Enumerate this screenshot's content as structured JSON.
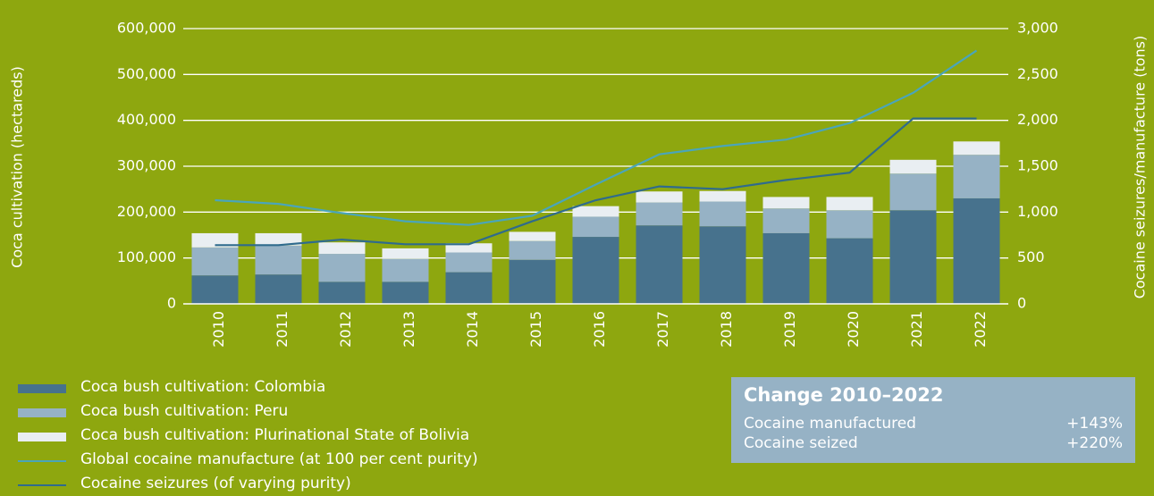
{
  "chart_data": {
    "type": "bar",
    "categories": [
      "2010",
      "2011",
      "2012",
      "2013",
      "2014",
      "2015",
      "2016",
      "2017",
      "2018",
      "2019",
      "2020",
      "2021",
      "2022"
    ],
    "ylabel_left": "Coca cultivation (hectareds)",
    "ylabel_right": "Cocaine seizures/manufacture (tons)",
    "ylim_left": [
      0,
      600000
    ],
    "ylim_right": [
      0,
      3000
    ],
    "yticks_left": [
      "0",
      "100,000",
      "200,000",
      "300,000",
      "400,000",
      "500,000",
      "600,000"
    ],
    "yticks_right": [
      "0",
      "500",
      "1,000",
      "1,500",
      "2,000",
      "2,500",
      "3,000"
    ],
    "grid": true,
    "stacked": true,
    "bar_series": [
      {
        "name": "Coca bush cultivation: Colombia",
        "color": "#47728d",
        "values": [
          62000,
          64000,
          48000,
          48000,
          69000,
          96000,
          146000,
          171000,
          169000,
          154000,
          143000,
          204000,
          230000
        ]
      },
      {
        "name": "Coca bush cultivation: Peru",
        "color": "#96b2c5",
        "values": [
          61000,
          63000,
          61000,
          50000,
          43000,
          41000,
          44000,
          50000,
          54000,
          54000,
          61000,
          80000,
          95000
        ]
      },
      {
        "name": "Coca bush cultivation: Plurinational State of Bolivia",
        "color": "#e9eef2",
        "values": [
          31000,
          27000,
          25000,
          23000,
          20000,
          20000,
          23000,
          24000,
          23000,
          25000,
          29000,
          30000,
          29000
        ]
      }
    ],
    "line_series": [
      {
        "name": "Global cocaine manufacture (at 100 per cent purity)",
        "color": "#4aa5ba",
        "axis": "right",
        "values": [
          1130,
          1090,
          990,
          900,
          860,
          960,
          1300,
          1630,
          1720,
          1790,
          1970,
          2300,
          2760
        ]
      },
      {
        "name": "Cocaine seizures (of varying purity)",
        "color": "#2f6b8d",
        "axis": "right",
        "values": [
          640,
          640,
          700,
          650,
          650,
          900,
          1130,
          1280,
          1250,
          1350,
          1430,
          2020,
          2020
        ]
      }
    ]
  },
  "legend": {
    "items": [
      {
        "label": "Coca bush cultivation: Colombia",
        "kind": "bar",
        "color": "#47728d"
      },
      {
        "label": "Coca bush cultivation: Peru",
        "kind": "bar",
        "color": "#96b2c5"
      },
      {
        "label": "Coca bush cultivation: Plurinational State of Bolivia",
        "kind": "bar",
        "color": "#e9eef2"
      },
      {
        "label": "Global cocaine manufacture (at 100 per cent purity)",
        "kind": "line",
        "color": "#4aa5ba"
      },
      {
        "label": "Cocaine seizures (of varying purity)",
        "kind": "line",
        "color": "#2f6b8d"
      }
    ]
  },
  "change_box": {
    "title": "Change 2010–2022",
    "rows": [
      {
        "label": "Cocaine manufactured",
        "value": "+143%"
      },
      {
        "label": "Cocaine seized",
        "value": "+220%"
      }
    ]
  }
}
